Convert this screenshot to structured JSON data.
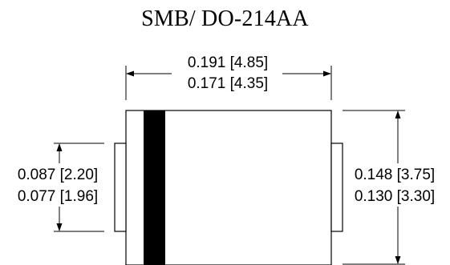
{
  "title": "SMB/ DO-214AA",
  "dimensions": {
    "body_length_max": "0.191 [4.85]",
    "body_length_min": "0.171 [4.35]",
    "terminal_height_max": "0.087 [2.20]",
    "terminal_height_min": "0.077 [1.96]",
    "body_height_max": "0.148 [3.75]",
    "body_height_min": "0.130 [3.30]"
  }
}
